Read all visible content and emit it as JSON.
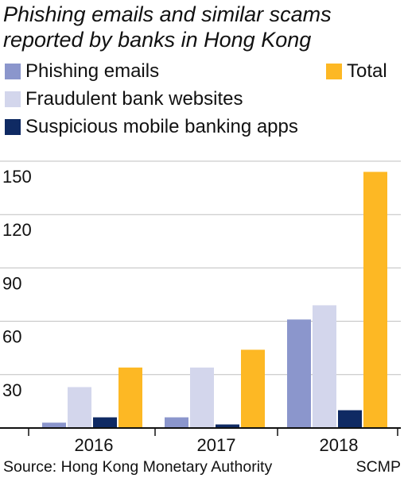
{
  "title_line1": "Phishing emails and similar scams",
  "title_line2": "reported by banks in Hong Kong",
  "colors": {
    "phishing": "#8b96cc",
    "fraudulent": "#d3d6ec",
    "suspicious": "#0f2a63",
    "total": "#fdb824",
    "grid": "#bfbfbf",
    "axis": "#111111"
  },
  "legend": [
    {
      "label": "Phishing emails",
      "color": "#8b96cc"
    },
    {
      "label": "Total",
      "color": "#fdb824"
    },
    {
      "label": "Fraudulent bank websites",
      "color": "#d3d6ec"
    },
    {
      "label": "Suspicious mobile banking apps",
      "color": "#0f2a63"
    }
  ],
  "source": "Source: Hong Kong Monetary Authority",
  "credit": "SCMP",
  "chart_data": {
    "type": "bar",
    "title": "Phishing emails and similar scams reported by banks in Hong Kong",
    "categories": [
      "2016",
      "2017",
      "2018"
    ],
    "series": [
      {
        "name": "Phishing emails",
        "color": "#8b96cc",
        "values": [
          3,
          6,
          61
        ]
      },
      {
        "name": "Fraudulent bank websites",
        "color": "#d3d6ec",
        "values": [
          23,
          34,
          69
        ]
      },
      {
        "name": "Suspicious mobile banking apps",
        "color": "#0f2a63",
        "values": [
          6,
          2,
          10
        ]
      },
      {
        "name": "Total",
        "color": "#fdb824",
        "values": [
          34,
          44,
          144
        ]
      }
    ],
    "yticks": [
      30,
      60,
      90,
      120,
      150
    ],
    "ylim": [
      0,
      150
    ],
    "xlabel": "",
    "ylabel": "",
    "grid": true,
    "legend_position": "top"
  }
}
